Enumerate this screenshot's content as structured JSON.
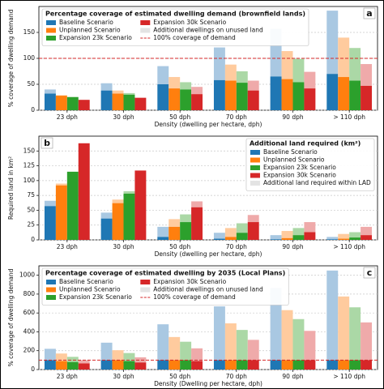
{
  "chart_data": [
    {
      "type": "bar",
      "panel": "a",
      "label_corner": "upper right",
      "title": "Percentage coverage of estimated dwelling demand (brownfield lands)",
      "xlabel": "Density (dwelling per hectare, dph)",
      "ylabel": "% coverage of dwelling demand",
      "categories": [
        "23 dph",
        "30 dph",
        "50 dph",
        "70 dph",
        "90 dph",
        "> 110 dph"
      ],
      "series": [
        {
          "name": "Baseline Scenario",
          "color": "#1f77b4",
          "light_color": "#a9c8e2",
          "values": [
            32,
            38,
            50,
            58,
            65,
            70
          ],
          "extra_values": [
            8,
            14,
            35,
            63,
            92,
            122
          ]
        },
        {
          "name": "Unplanned Scenario",
          "color": "#ff7f0e",
          "light_color": "#ffcb9e",
          "values": [
            28,
            32,
            42,
            57,
            60,
            64
          ],
          "extra_values": [
            1,
            6,
            22,
            31,
            54,
            76
          ]
        },
        {
          "name": "Expansion 23k Scenario",
          "color": "#2ca02c",
          "light_color": "#abd8a6",
          "values": [
            25,
            30,
            40,
            53,
            54,
            57
          ],
          "extra_values": [
            1,
            3,
            14,
            22,
            45,
            63
          ]
        },
        {
          "name": "Expansion 30k Scenario",
          "color": "#d62728",
          "light_color": "#efaaaa",
          "values": [
            20,
            24,
            31,
            38,
            42,
            47
          ],
          "extra_values": [
            0,
            0,
            14,
            19,
            32,
            42
          ]
        }
      ],
      "extra_name": "Additional dwellings on unused land",
      "extra_color": "#e3e3e3",
      "ref_line": {
        "value": 100,
        "name": "100% coverage of demand",
        "color": "#d62728"
      },
      "ylim": [
        0,
        200
      ],
      "yticks": [
        0,
        50,
        100,
        150
      ],
      "grid": true,
      "legend": "upper left",
      "legend_columns": 2
    },
    {
      "type": "bar",
      "panel": "b",
      "label_corner": "upper left",
      "title": "Additional land required (km²)",
      "xlabel": "Density (dwelling per hectare, dph)",
      "ylabel": "Required land in km²",
      "categories": [
        "23 dph",
        "30 dph",
        "50 dph",
        "70 dph",
        "90 dph",
        "> 110 dph"
      ],
      "series": [
        {
          "name": "Baseline Scenario",
          "color": "#1f77b4",
          "light_color": "#a9c8e2",
          "values": [
            57,
            36,
            5,
            2,
            1,
            1
          ],
          "extra_values": [
            9,
            10,
            17,
            10,
            7,
            4
          ]
        },
        {
          "name": "Unplanned Scenario",
          "color": "#ff7f0e",
          "light_color": "#ffcb9e",
          "values": [
            92,
            62,
            22,
            5,
            3,
            2
          ],
          "extra_values": [
            3,
            6,
            13,
            15,
            12,
            8
          ]
        },
        {
          "name": "Expansion 23k Scenario",
          "color": "#2ca02c",
          "light_color": "#abd8a6",
          "values": [
            115,
            78,
            30,
            12,
            8,
            4
          ],
          "extra_values": [
            0,
            4,
            13,
            16,
            12,
            9
          ]
        },
        {
          "name": "Expansion 30k Scenario",
          "color": "#d62728",
          "light_color": "#efaaaa",
          "values": [
            163,
            117,
            55,
            30,
            13,
            8
          ],
          "extra_values": [
            0,
            0,
            10,
            12,
            17,
            14
          ]
        }
      ],
      "extra_name": "Additional land required within LAD",
      "extra_color": "#e3e3e3",
      "ylim": [
        0,
        175
      ],
      "yticks": [
        0,
        25,
        50,
        75,
        100,
        125,
        150
      ],
      "grid": true,
      "legend": "upper right",
      "legend_columns": 1
    },
    {
      "type": "bar",
      "panel": "c",
      "label_corner": "upper right",
      "title": "Percentage coverage of estimated dwelling by 2035 (Local Plans)",
      "xlabel": "Density (Dwelling per hectare, dph)",
      "ylabel": "% coverage of dwelling demand",
      "categories": [
        "23 dph",
        "30 dph",
        "50 dph",
        "70 dph",
        "90 dph",
        "> 110 dph"
      ],
      "series": [
        {
          "name": "Baseline Scenario",
          "color": "#1f77b4",
          "light_color": "#a9c8e2",
          "values": [
            100,
            100,
            100,
            100,
            100,
            100
          ],
          "extra_values": [
            120,
            185,
            380,
            570,
            765,
            950
          ]
        },
        {
          "name": "Unplanned Scenario",
          "color": "#ff7f0e",
          "light_color": "#ffcb9e",
          "values": [
            90,
            100,
            100,
            100,
            100,
            100
          ],
          "extra_values": [
            80,
            105,
            245,
            390,
            530,
            675
          ]
        },
        {
          "name": "Expansion 23k Scenario",
          "color": "#2ca02c",
          "light_color": "#abd8a6",
          "values": [
            80,
            90,
            100,
            100,
            100,
            100
          ],
          "extra_values": [
            55,
            85,
            195,
            320,
            435,
            560
          ]
        },
        {
          "name": "Expansion 30k Scenario",
          "color": "#d62728",
          "light_color": "#efaaaa",
          "values": [
            65,
            75,
            90,
            100,
            100,
            100
          ],
          "extra_values": [
            35,
            55,
            135,
            215,
            310,
            400
          ]
        }
      ],
      "extra_name": "Additional dwellings on unused land",
      "extra_color": "#e3e3e3",
      "ref_line": {
        "value": 100,
        "name": "100% coverage of demand",
        "color": "#d62728"
      },
      "ylim": [
        0,
        1100
      ],
      "yticks": [
        0,
        200,
        400,
        600,
        800,
        1000
      ],
      "grid": true,
      "legend": "upper left",
      "legend_columns": 2
    }
  ]
}
